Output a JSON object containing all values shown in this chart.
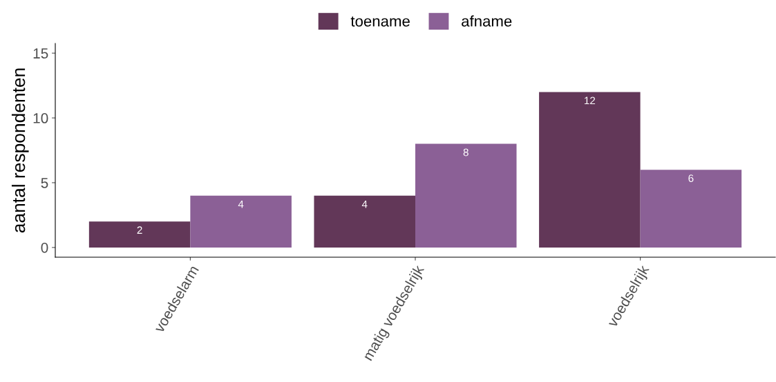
{
  "chart_data": {
    "type": "bar",
    "ylabel": "aantal respondenten",
    "categories": [
      "voedselarm",
      "matig voedselrijk",
      "voedselrijk"
    ],
    "series": [
      {
        "name": "toename",
        "color": "#623758",
        "values": [
          2,
          4,
          12
        ]
      },
      {
        "name": "afname",
        "color": "#8b6096",
        "values": [
          4,
          8,
          6
        ]
      }
    ],
    "ylim": [
      -0.75,
      15.75
    ],
    "yticks": [
      0,
      5,
      10,
      15
    ],
    "grid": false,
    "legend": "top",
    "data_labels": true
  }
}
